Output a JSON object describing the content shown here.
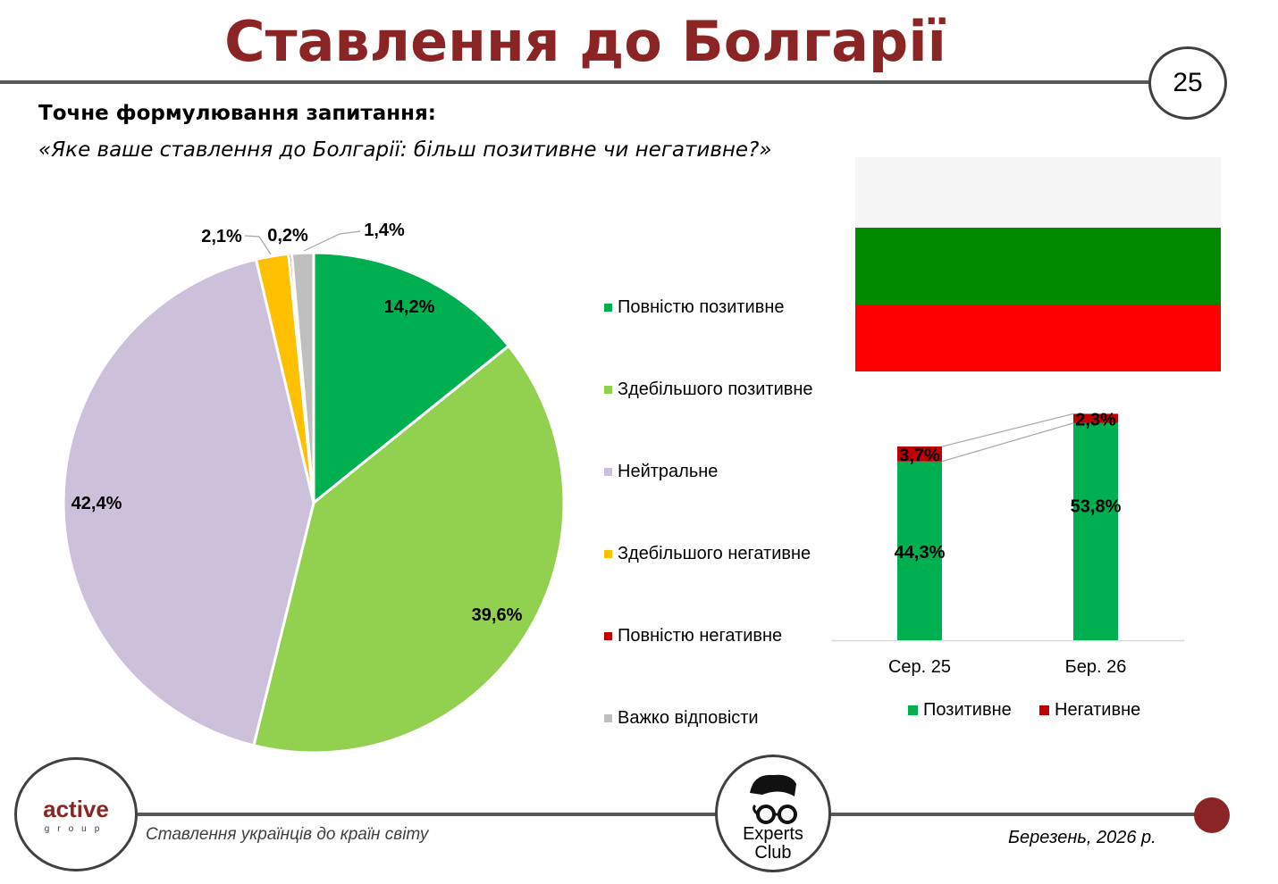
{
  "title": "Ставлення до Болгарії",
  "page_number": "25",
  "question_label": "Точне формулювання запитання:",
  "question_text": "«Яке ваше ставлення до Болгарії: більш позитивне чи негативне?»",
  "footer": {
    "subtitle": "Ставлення українців до країн світу",
    "date": "Березень, 2026 р.",
    "logo_left": "active group",
    "logo_center": "Experts Club"
  },
  "flag": {
    "colors": [
      "#F5F5F5",
      "#008A00",
      "#FF0000"
    ]
  },
  "chart_data": [
    {
      "type": "pie",
      "categories": [
        "Повністю позитивне",
        "Здебільшого позитивне",
        "Нейтральне",
        "Здебільшого негативне",
        "Повністю негативне",
        "Важко відповісти"
      ],
      "values": [
        14.2,
        39.6,
        42.4,
        2.1,
        0.2,
        1.4
      ],
      "labels": [
        "14,2%",
        "39,6%",
        "42,4%",
        "2,1%",
        "0,2%",
        "1,4%"
      ],
      "colors": [
        "#00B050",
        "#92D050",
        "#CCC0DA",
        "#FFC000",
        "#C00000",
        "#BFBFBF"
      ],
      "legend_position": "right"
    },
    {
      "type": "bar",
      "stacked": true,
      "categories": [
        "Сер. 25",
        "Бер. 26"
      ],
      "series": [
        {
          "name": "Позитивне",
          "values": [
            44.3,
            53.8
          ],
          "labels": [
            "44,3%",
            "53,8%"
          ],
          "color": "#00B050"
        },
        {
          "name": "Негативне",
          "values": [
            3.7,
            2.3
          ],
          "labels": [
            "3,7%",
            "2,3%"
          ],
          "color": "#C00000"
        }
      ],
      "legend_position": "bottom"
    }
  ]
}
